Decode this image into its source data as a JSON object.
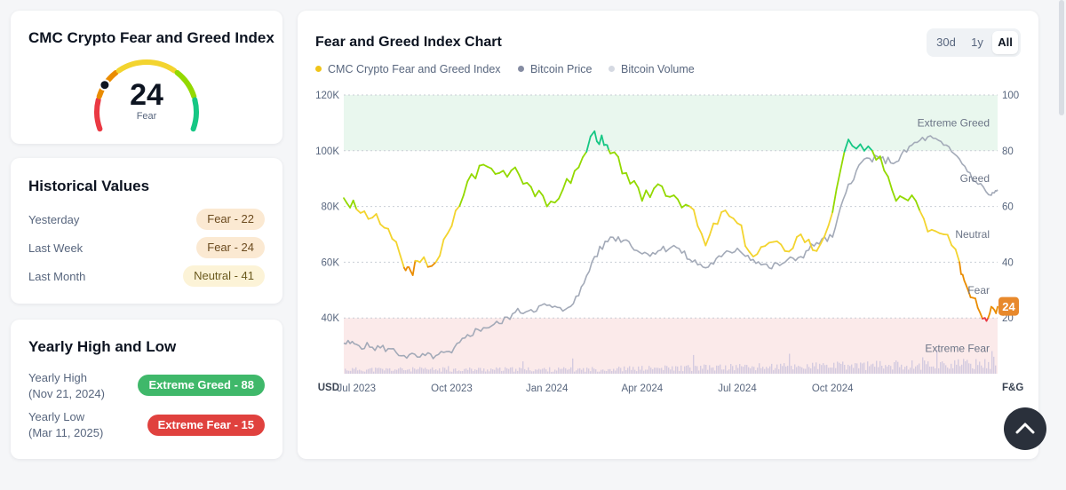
{
  "index_card": {
    "title": "CMC Crypto Fear and Greed Index",
    "value": "24",
    "classification": "Fear",
    "value_fraction": 0.24,
    "gauge_colors": [
      "#ea3943",
      "#ea8c00",
      "#f3d42f",
      "#93d900",
      "#16c784"
    ]
  },
  "historical": {
    "title": "Historical Values",
    "rows": [
      {
        "label": "Yesterday",
        "value": "Fear - 22"
      },
      {
        "label": "Last Week",
        "value": "Fear - 24"
      },
      {
        "label": "Last Month",
        "value": "Neutral - 41"
      }
    ]
  },
  "yearly": {
    "title": "Yearly High and Low",
    "high": {
      "label": "Yearly High",
      "date": "(Nov 21, 2024)",
      "value": "Extreme Greed - 88"
    },
    "low": {
      "label": "Yearly Low",
      "date": "(Mar 11, 2025)",
      "value": "Extreme Fear - 15"
    }
  },
  "chart_card": {
    "title": "Fear and Greed Index Chart",
    "ranges": [
      "30d",
      "1y",
      "All"
    ],
    "active_range": "All"
  },
  "colors": {
    "extreme_fear": "#ea3943",
    "fear": "#ea8c00",
    "neutral": "#f3d42f",
    "greed": "#93d900",
    "extreme_greed": "#16c784",
    "btc_price": "#a3aab8",
    "btc_volume": "#d4cbe0",
    "current_badge": "#e8892c"
  },
  "chart_data": {
    "type": "line",
    "title": "Fear and Greed Index Chart",
    "legend": [
      "CMC Crypto Fear and Greed Index",
      "Bitcoin Price",
      "Bitcoin Volume"
    ],
    "legend_colors": [
      "#f0c419",
      "#858ca2",
      "#d5d9e2"
    ],
    "x_ticks": [
      "Jul 2023",
      "Oct 2023",
      "Jan 2024",
      "Apr 2024",
      "Jul 2024",
      "Oct 2024"
    ],
    "x_tick_months": [
      0,
      3,
      6,
      9,
      12,
      15
    ],
    "x_range_months": [
      -0.4,
      20.2
    ],
    "left_axis": {
      "label": "USD",
      "ticks": [
        "120K",
        "100K",
        "80K",
        "60K",
        "40K"
      ],
      "tick_values": [
        120000,
        100000,
        80000,
        60000,
        40000
      ],
      "range": [
        20000,
        120000
      ]
    },
    "right_axis": {
      "label": "F&G",
      "ticks": [
        "100",
        "80",
        "60",
        "40",
        "20"
      ],
      "tick_values": [
        100,
        80,
        60,
        40,
        20
      ],
      "range": [
        0,
        100
      ]
    },
    "zones": [
      {
        "name": "Extreme Greed",
        "from": 80,
        "to": 100
      },
      {
        "name": "Greed",
        "from": 60,
        "to": 80
      },
      {
        "name": "Neutral",
        "from": 40,
        "to": 60
      },
      {
        "name": "Fear",
        "from": 20,
        "to": 40
      },
      {
        "name": "Extreme Fear",
        "from": 0,
        "to": 20
      }
    ],
    "current_value": "24",
    "fear_greed": {
      "month": [
        -0.4,
        0,
        0.5,
        1,
        1.5,
        1.7,
        2,
        2.5,
        3,
        3.5,
        4,
        4.5,
        5,
        5.5,
        6,
        6.5,
        7,
        7.5,
        7.8,
        8,
        8.5,
        9,
        9.5,
        10,
        10.5,
        11,
        11.5,
        12,
        12.5,
        13,
        13.5,
        14,
        14.5,
        15,
        15.5,
        16,
        16.5,
        17,
        17.5,
        18,
        18.5,
        19,
        19.2,
        19.5,
        19.8,
        20,
        20.2
      ],
      "value": [
        63,
        59,
        56,
        52,
        38,
        37,
        40,
        40,
        53,
        69,
        75,
        72,
        74,
        67,
        60,
        66,
        74,
        87,
        82,
        79,
        72,
        62,
        68,
        64,
        60,
        46,
        58,
        54,
        42,
        47,
        44,
        50,
        44,
        58,
        84,
        80,
        78,
        62,
        64,
        51,
        50,
        40,
        32,
        27,
        20,
        24,
        24
      ]
    },
    "btc_price": {
      "month": [
        -0.4,
        0,
        0.5,
        1,
        1.5,
        2,
        2.5,
        3,
        3.5,
        4,
        4.5,
        5,
        5.5,
        6,
        6.5,
        7,
        7.5,
        8,
        8.5,
        9,
        9.5,
        10,
        10.5,
        11,
        11.5,
        12,
        12.5,
        13,
        13.5,
        14,
        14.5,
        15,
        15.5,
        16,
        16.5,
        17,
        17.5,
        18,
        18.5,
        19,
        19.5,
        20,
        20.2
      ],
      "value": [
        31000,
        30500,
        29500,
        29000,
        26500,
        26000,
        26500,
        27500,
        34000,
        36500,
        38000,
        42000,
        43000,
        44500,
        42500,
        48000,
        62000,
        69000,
        68000,
        63000,
        64000,
        66000,
        61000,
        58000,
        62000,
        65000,
        61000,
        58000,
        60000,
        62000,
        67000,
        69000,
        88000,
        97000,
        97000,
        96000,
        102000,
        105000,
        102000,
        97000,
        89000,
        84000,
        86000
      ]
    }
  },
  "scroll_top": {
    "icon": "chevron-up-icon"
  }
}
